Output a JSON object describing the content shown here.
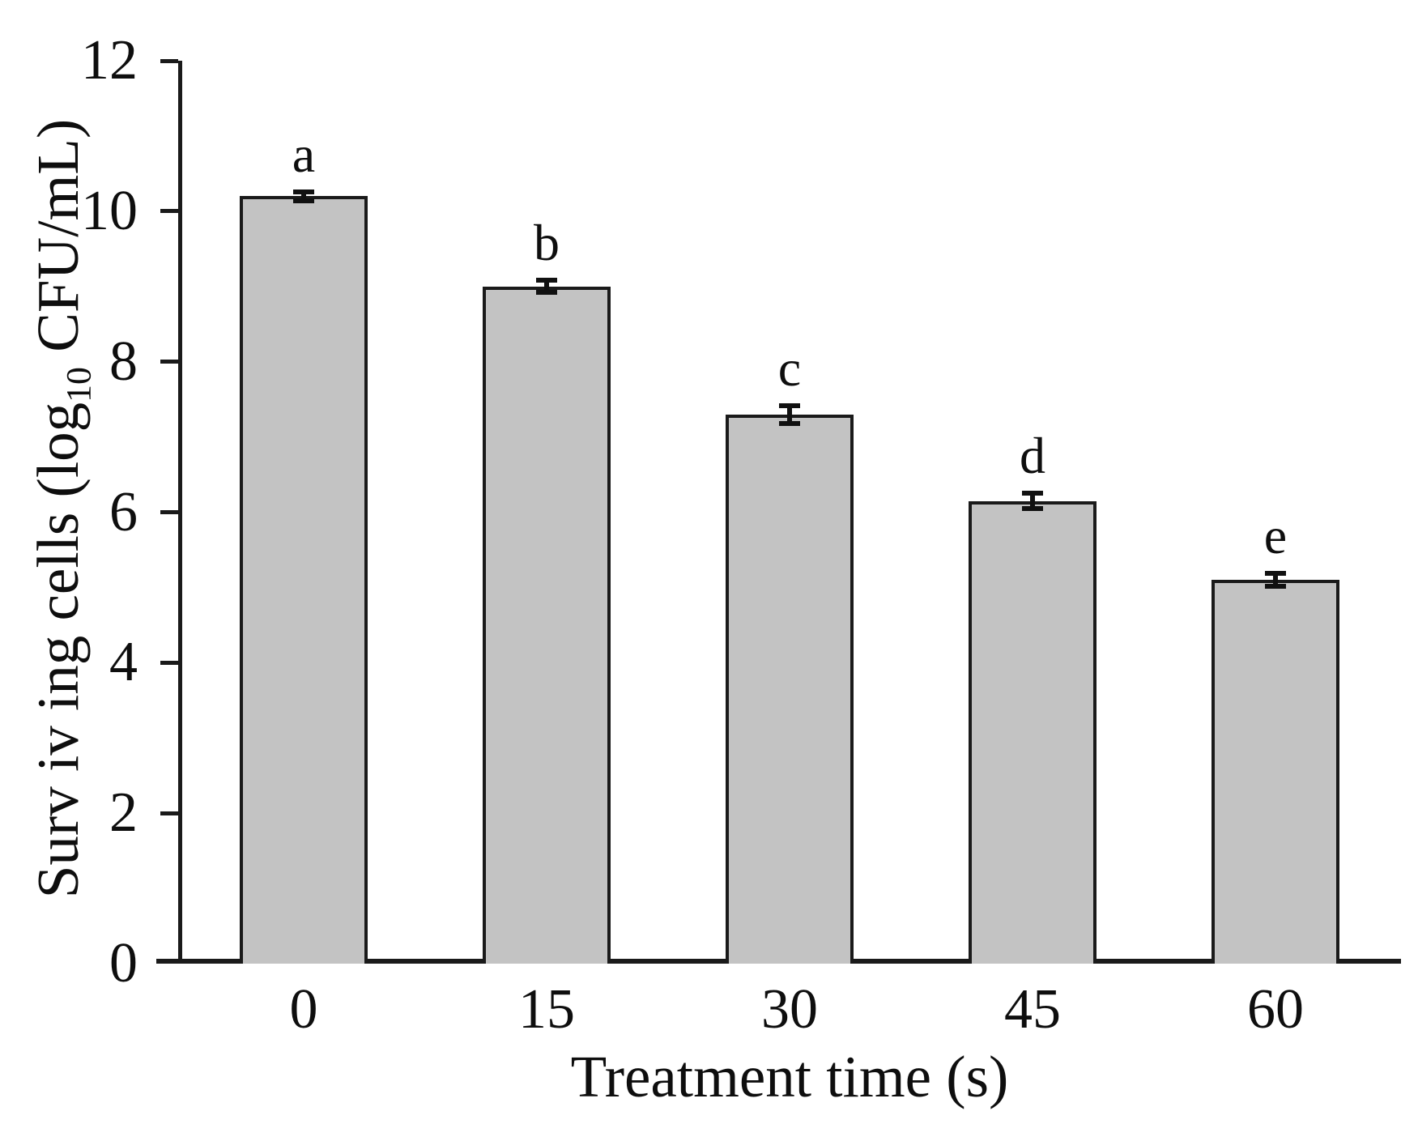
{
  "chart_data": {
    "type": "bar",
    "title": "",
    "xlabel": "Treatment time (s)",
    "ylabel": "Surv iv ing cells (log10 CFU/mL)",
    "ylabel_parts": {
      "prefix": "Surv iv ing cells (log",
      "subscript": "10",
      "suffix": " CFU/mL)"
    },
    "categories": [
      "0",
      "15",
      "30",
      "45",
      "60"
    ],
    "values": [
      10.2,
      9.0,
      7.3,
      6.15,
      5.1
    ],
    "errors": [
      0.06,
      0.08,
      0.12,
      0.1,
      0.09
    ],
    "significance_letters": [
      "a",
      "b",
      "c",
      "d",
      "e"
    ],
    "ylim": [
      0,
      12
    ],
    "yticks": [
      0,
      2,
      4,
      6,
      8,
      10,
      12
    ],
    "grid": false,
    "legend": null,
    "colors": {
      "bar_fill": "#c3c3c3",
      "bar_border": "#1a1a1a",
      "axis": "#1a1a1a",
      "error_bar": "#111111",
      "text": "#0e0e0e"
    }
  }
}
